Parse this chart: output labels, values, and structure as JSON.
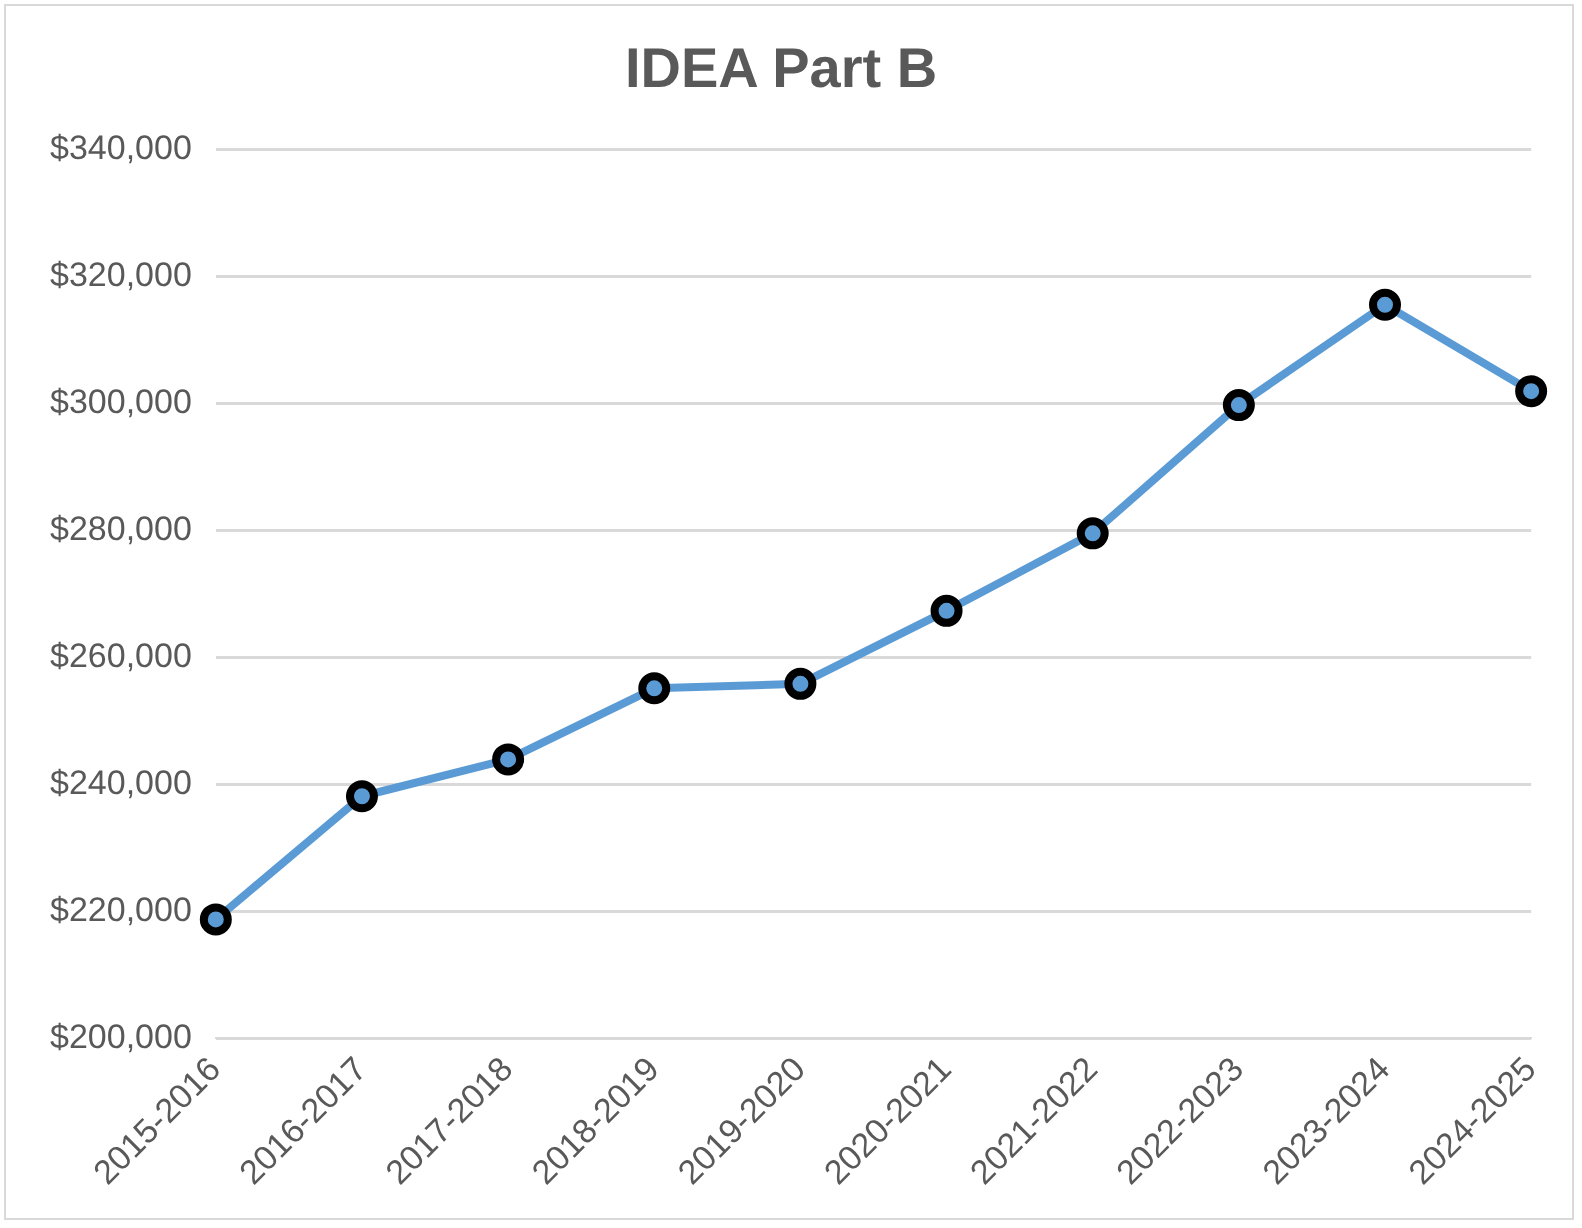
{
  "chart_data": {
    "type": "line",
    "title": "IDEA Part B",
    "categories": [
      "2015-2016",
      "2016-2017",
      "2017-2018",
      "2018-2019",
      "2019-2020",
      "2020-2021",
      "2021-2022",
      "2022-2023",
      "2023-2024",
      "2024-2025"
    ],
    "series": [
      {
        "color": "#5b9bd5",
        "values": [
          218700,
          238100,
          243900,
          255100,
          255800,
          267300,
          279500,
          299700,
          315500,
          301900
        ]
      }
    ],
    "ylim": [
      200000,
      340000
    ],
    "yticks": [
      {
        "value": 200000,
        "label": "$200,000"
      },
      {
        "value": 220000,
        "label": "$220,000"
      },
      {
        "value": 240000,
        "label": "$240,000"
      },
      {
        "value": 260000,
        "label": "$260,000"
      },
      {
        "value": 280000,
        "label": "$280,000"
      },
      {
        "value": 300000,
        "label": "$300,000"
      },
      {
        "value": 320000,
        "label": "$320,000"
      },
      {
        "value": 340000,
        "label": "$340,000"
      }
    ],
    "grid": "y",
    "legend": false,
    "marker": "circle",
    "line_style": "solid"
  }
}
